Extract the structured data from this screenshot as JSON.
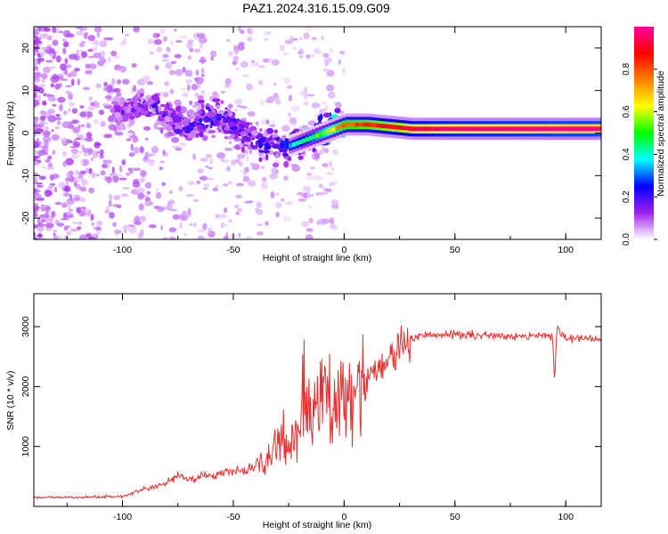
{
  "title": "PAZ1.2024.316.15.09.G09",
  "chart_data": [
    {
      "type": "heatmap",
      "xlabel": "Height of straight line (km)",
      "ylabel": "Frequency (Hz)",
      "xlim": [
        -140,
        116
      ],
      "ylim": [
        -25,
        25
      ],
      "xticks": [
        -100,
        -50,
        0,
        50,
        100
      ],
      "yticks": [
        -20,
        -10,
        0,
        10,
        20
      ],
      "colorbar": {
        "label": "Normalized spectral amplitude",
        "range": [
          0,
          1
        ],
        "ticks": [
          "0.0",
          "0.2",
          "0.4",
          "0.6",
          "0.8"
        ],
        "colormap": [
          "#ffffff",
          "#a020f0",
          "#0000ff",
          "#00ffff",
          "#00ff00",
          "#ffff00",
          "#ff8000",
          "#ff0000",
          "#ff00a0"
        ]
      },
      "ridge": {
        "x": [
          -100,
          -90,
          -85,
          -80,
          -70,
          -60,
          -50,
          -40,
          -35,
          -30,
          -25,
          -20,
          -15,
          -10,
          -5,
          0,
          10,
          20,
          30,
          50,
          75,
          100,
          116
        ],
        "y": [
          5,
          7,
          6,
          3,
          2,
          4,
          2,
          -2,
          -3,
          -2,
          -3,
          -2,
          -1,
          0,
          1,
          2,
          2,
          1.5,
          1,
          1,
          1,
          1,
          1
        ],
        "amplitude": [
          0.15,
          0.18,
          0.2,
          0.2,
          0.22,
          0.25,
          0.22,
          0.2,
          0.22,
          0.25,
          0.28,
          0.35,
          0.42,
          0.5,
          0.6,
          0.7,
          0.75,
          0.8,
          0.85,
          0.9,
          0.92,
          0.95,
          0.95
        ]
      }
    },
    {
      "type": "line",
      "xlabel": "Height of straight line (km)",
      "ylabel": "SNR (10 * v/v)",
      "xlim": [
        -140,
        116
      ],
      "ylim": [
        0,
        3550
      ],
      "xticks": [
        -100,
        -50,
        0,
        50,
        100
      ],
      "yticks": [
        1000,
        2000,
        3000
      ],
      "color": "#e83030",
      "series": [
        {
          "x": [
            -140,
            -120,
            -100,
            -90,
            -80,
            -75,
            -70,
            -60,
            -50,
            -45,
            -40,
            -35,
            -30,
            -28,
            -25,
            -22,
            -20,
            -18,
            -15,
            -12,
            -10,
            -5,
            0,
            5,
            10,
            15,
            20,
            25,
            30,
            35,
            40,
            45,
            50,
            60,
            70,
            80,
            90,
            94,
            95,
            96,
            100,
            110,
            116
          ],
          "y": [
            150,
            150,
            170,
            280,
            380,
            520,
            450,
            520,
            580,
            600,
            650,
            800,
            1000,
            1300,
            800,
            1400,
            1300,
            2100,
            1500,
            1700,
            1800,
            1700,
            1900,
            2000,
            2150,
            2300,
            2450,
            2650,
            2800,
            2850,
            2850,
            2850,
            2880,
            2850,
            2850,
            2850,
            2850,
            2850,
            2100,
            3000,
            2800,
            2800,
            2780
          ]
        }
      ]
    }
  ]
}
